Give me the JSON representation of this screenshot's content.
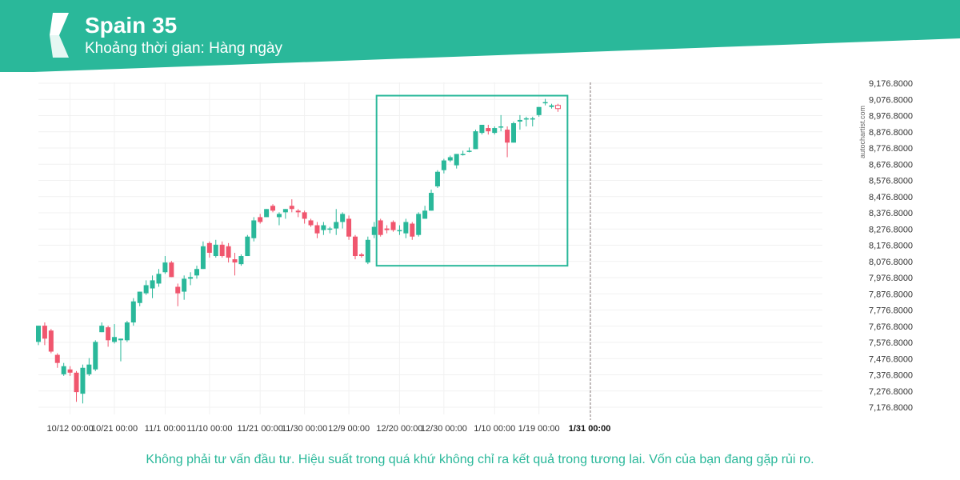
{
  "header": {
    "title": "Spain 35",
    "subtitle": "Khoảng thời gian: Hàng ngày"
  },
  "footer": {
    "disclaimer": "Không phải tư vấn đầu tư. Hiệu suất trong quá khứ không chỉ ra kết quả trong tương lai. Vốn của bạn đang gặp rủi ro."
  },
  "watermark": "autochartist.com",
  "colors": {
    "brand": "#2ab89a",
    "brand_dark": "#1f9c83",
    "up": "#2ab89a",
    "down": "#f0566e",
    "grid": "#f1f1f1",
    "axis_text": "#333333"
  },
  "chart_data": {
    "type": "candlestick",
    "ylim": [
      7100,
      9220
    ],
    "y_ticks": [
      "9,176.8000",
      "9,076.8000",
      "8,976.8000",
      "8,876.8000",
      "8,776.8000",
      "8,676.8000",
      "8,576.8000",
      "8,476.8000",
      "8,376.8000",
      "8,276.8000",
      "8,176.8000",
      "8,076.8000",
      "7,976.8000",
      "7,876.8000",
      "7,776.8000",
      "7,676.8000",
      "7,576.8000",
      "7,476.8000",
      "7,376.8000",
      "7,276.8000",
      "7,176.8000"
    ],
    "x_ticks": [
      "10/12 00:00",
      "10/21 00:00",
      "11/1 00:00",
      "11/10 00:00",
      "11/21 00:00",
      "11/30 00:00",
      "12/9 00:00",
      "12/20 00:00",
      "12/30 00:00",
      "1/10 00:00",
      "1/19 00:00",
      "1/31 00:00"
    ],
    "x_tick_bar_index": [
      5,
      12,
      20,
      27,
      35,
      42,
      49,
      57,
      64,
      72,
      79,
      87
    ],
    "highlight_x_tick": "1/31 00:00",
    "candles": [
      {
        "o": 7580,
        "h": 7680,
        "l": 7560,
        "c": 7680
      },
      {
        "o": 7680,
        "h": 7700,
        "l": 7560,
        "c": 7600
      },
      {
        "o": 7650,
        "h": 7660,
        "l": 7510,
        "c": 7520
      },
      {
        "o": 7500,
        "h": 7510,
        "l": 7420,
        "c": 7450
      },
      {
        "o": 7380,
        "h": 7450,
        "l": 7370,
        "c": 7430
      },
      {
        "o": 7410,
        "h": 7430,
        "l": 7370,
        "c": 7390
      },
      {
        "o": 7390,
        "h": 7400,
        "l": 7210,
        "c": 7270
      },
      {
        "o": 7260,
        "h": 7440,
        "l": 7200,
        "c": 7420
      },
      {
        "o": 7380,
        "h": 7480,
        "l": 7370,
        "c": 7440
      },
      {
        "o": 7410,
        "h": 7590,
        "l": 7400,
        "c": 7580
      },
      {
        "o": 7640,
        "h": 7700,
        "l": 7640,
        "c": 7680
      },
      {
        "o": 7670,
        "h": 7680,
        "l": 7550,
        "c": 7590
      },
      {
        "o": 7580,
        "h": 7690,
        "l": 7570,
        "c": 7610
      },
      {
        "o": 7590,
        "h": 7600,
        "l": 7460,
        "c": 7600
      },
      {
        "o": 7590,
        "h": 7710,
        "l": 7580,
        "c": 7700
      },
      {
        "o": 7700,
        "h": 7850,
        "l": 7680,
        "c": 7830
      },
      {
        "o": 7820,
        "h": 7890,
        "l": 7800,
        "c": 7890
      },
      {
        "o": 7880,
        "h": 7960,
        "l": 7870,
        "c": 7930
      },
      {
        "o": 7910,
        "h": 7990,
        "l": 7850,
        "c": 7960
      },
      {
        "o": 7940,
        "h": 8030,
        "l": 7920,
        "c": 8000
      },
      {
        "o": 8010,
        "h": 8110,
        "l": 8000,
        "c": 8070
      },
      {
        "o": 8070,
        "h": 8080,
        "l": 7980,
        "c": 7980
      },
      {
        "o": 7920,
        "h": 7940,
        "l": 7800,
        "c": 7880
      },
      {
        "o": 7890,
        "h": 7990,
        "l": 7840,
        "c": 7970
      },
      {
        "o": 7970,
        "h": 8010,
        "l": 7930,
        "c": 7980
      },
      {
        "o": 7990,
        "h": 8050,
        "l": 7970,
        "c": 8030
      },
      {
        "o": 8030,
        "h": 8200,
        "l": 8030,
        "c": 8170
      },
      {
        "o": 8190,
        "h": 8200,
        "l": 8100,
        "c": 8130
      },
      {
        "o": 8110,
        "h": 8210,
        "l": 8100,
        "c": 8180
      },
      {
        "o": 8180,
        "h": 8200,
        "l": 8100,
        "c": 8110
      },
      {
        "o": 8170,
        "h": 8190,
        "l": 8070,
        "c": 8100
      },
      {
        "o": 8090,
        "h": 8130,
        "l": 7990,
        "c": 8070
      },
      {
        "o": 8060,
        "h": 8120,
        "l": 8050,
        "c": 8110
      },
      {
        "o": 8110,
        "h": 8240,
        "l": 8110,
        "c": 8230
      },
      {
        "o": 8220,
        "h": 8350,
        "l": 8200,
        "c": 8330
      },
      {
        "o": 8350,
        "h": 8370,
        "l": 8310,
        "c": 8320
      },
      {
        "o": 8350,
        "h": 8400,
        "l": 8350,
        "c": 8400
      },
      {
        "o": 8420,
        "h": 8430,
        "l": 8380,
        "c": 8390
      },
      {
        "o": 8350,
        "h": 8380,
        "l": 8300,
        "c": 8370
      },
      {
        "o": 8380,
        "h": 8400,
        "l": 8340,
        "c": 8400
      },
      {
        "o": 8420,
        "h": 8460,
        "l": 8380,
        "c": 8400
      },
      {
        "o": 8390,
        "h": 8400,
        "l": 8350,
        "c": 8380
      },
      {
        "o": 8380,
        "h": 8390,
        "l": 8310,
        "c": 8340
      },
      {
        "o": 8330,
        "h": 8340,
        "l": 8290,
        "c": 8300
      },
      {
        "o": 8300,
        "h": 8320,
        "l": 8220,
        "c": 8250
      },
      {
        "o": 8270,
        "h": 8320,
        "l": 8240,
        "c": 8300
      },
      {
        "o": 8280,
        "h": 8290,
        "l": 8250,
        "c": 8280
      },
      {
        "o": 8280,
        "h": 8400,
        "l": 8240,
        "c": 8320
      },
      {
        "o": 8320,
        "h": 8380,
        "l": 8280,
        "c": 8370
      },
      {
        "o": 8340,
        "h": 8360,
        "l": 8210,
        "c": 8230
      },
      {
        "o": 8230,
        "h": 8240,
        "l": 8090,
        "c": 8110
      },
      {
        "o": 8120,
        "h": 8130,
        "l": 8100,
        "c": 8110
      },
      {
        "o": 8070,
        "h": 8230,
        "l": 8060,
        "c": 8210
      },
      {
        "o": 8240,
        "h": 8320,
        "l": 8220,
        "c": 8290
      },
      {
        "o": 8330,
        "h": 8340,
        "l": 8230,
        "c": 8240
      },
      {
        "o": 8280,
        "h": 8300,
        "l": 8250,
        "c": 8270
      },
      {
        "o": 8320,
        "h": 8330,
        "l": 8260,
        "c": 8270
      },
      {
        "o": 8270,
        "h": 8300,
        "l": 8240,
        "c": 8270
      },
      {
        "o": 8250,
        "h": 8340,
        "l": 8220,
        "c": 8320
      },
      {
        "o": 8310,
        "h": 8320,
        "l": 8210,
        "c": 8230
      },
      {
        "o": 8240,
        "h": 8380,
        "l": 8230,
        "c": 8370
      },
      {
        "o": 8340,
        "h": 8420,
        "l": 8340,
        "c": 8390
      },
      {
        "o": 8390,
        "h": 8520,
        "l": 8390,
        "c": 8500
      },
      {
        "o": 8540,
        "h": 8640,
        "l": 8530,
        "c": 8630
      },
      {
        "o": 8640,
        "h": 8710,
        "l": 8620,
        "c": 8700
      },
      {
        "o": 8700,
        "h": 8730,
        "l": 8690,
        "c": 8720
      },
      {
        "o": 8670,
        "h": 8740,
        "l": 8650,
        "c": 8740
      },
      {
        "o": 8740,
        "h": 8760,
        "l": 8730,
        "c": 8740
      },
      {
        "o": 8760,
        "h": 8780,
        "l": 8750,
        "c": 8760
      },
      {
        "o": 8770,
        "h": 8890,
        "l": 8770,
        "c": 8880
      },
      {
        "o": 8870,
        "h": 8920,
        "l": 8860,
        "c": 8920
      },
      {
        "o": 8900,
        "h": 8920,
        "l": 8860,
        "c": 8880
      },
      {
        "o": 8870,
        "h": 8910,
        "l": 8860,
        "c": 8900
      },
      {
        "o": 8910,
        "h": 8980,
        "l": 8880,
        "c": 8910
      },
      {
        "o": 8890,
        "h": 8910,
        "l": 8720,
        "c": 8810
      },
      {
        "o": 8810,
        "h": 8940,
        "l": 8810,
        "c": 8930
      },
      {
        "o": 8940,
        "h": 8980,
        "l": 8890,
        "c": 8950
      },
      {
        "o": 8960,
        "h": 8970,
        "l": 8910,
        "c": 8960
      },
      {
        "o": 8960,
        "h": 8970,
        "l": 8910,
        "c": 8960
      },
      {
        "o": 8980,
        "h": 9030,
        "l": 8970,
        "c": 9030
      },
      {
        "o": 9060,
        "h": 9080,
        "l": 9040,
        "c": 9060
      },
      {
        "o": 9030,
        "h": 9050,
        "l": 9020,
        "c": 9040
      },
      {
        "o": 9040,
        "h": 9050,
        "l": 9000,
        "c": 9020
      }
    ],
    "pattern_box": {
      "start_index": 54,
      "end_index": 83,
      "low": 8050,
      "high": 9100
    }
  }
}
